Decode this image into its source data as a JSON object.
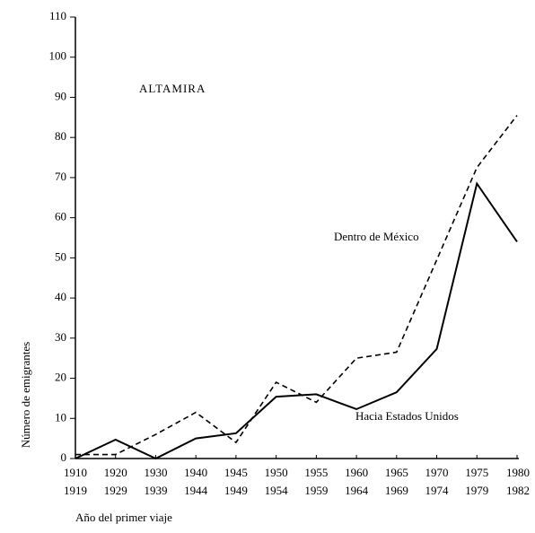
{
  "chart_data": {
    "type": "line",
    "annotation": "ALTAMIRA",
    "x_label": "Año del primer viaje",
    "y_label": "Número de emigrantes",
    "categories": [
      [
        "1910",
        "1919"
      ],
      [
        "1920",
        "1929"
      ],
      [
        "1930",
        "1939"
      ],
      [
        "1940",
        "1944"
      ],
      [
        "1945",
        "1949"
      ],
      [
        "1950",
        "1954"
      ],
      [
        "1955",
        "1959"
      ],
      [
        "1960",
        "1964"
      ],
      [
        "1965",
        "1969"
      ],
      [
        "1970",
        "1974"
      ],
      [
        "1975",
        "1979"
      ],
      [
        "1980",
        "1982"
      ]
    ],
    "series": [
      {
        "name": "Dentro de México",
        "color": "#000000",
        "dash": true,
        "values": [
          1,
          1,
          6,
          11.5,
          4,
          19,
          14,
          25,
          26.5,
          49.5,
          72.5,
          85.5
        ]
      },
      {
        "name": "Hacia Estados Unidos",
        "color": "#000000",
        "dash": false,
        "values": [
          0,
          4.7,
          0,
          5,
          6.3,
          15.4,
          16,
          12.3,
          16.5,
          27.3,
          68.5,
          54
        ]
      }
    ],
    "ylim": [
      0,
      110
    ],
    "yticks": [
      0,
      10,
      20,
      30,
      40,
      50,
      60,
      70,
      80,
      90,
      100,
      110
    ],
    "grid": false
  }
}
